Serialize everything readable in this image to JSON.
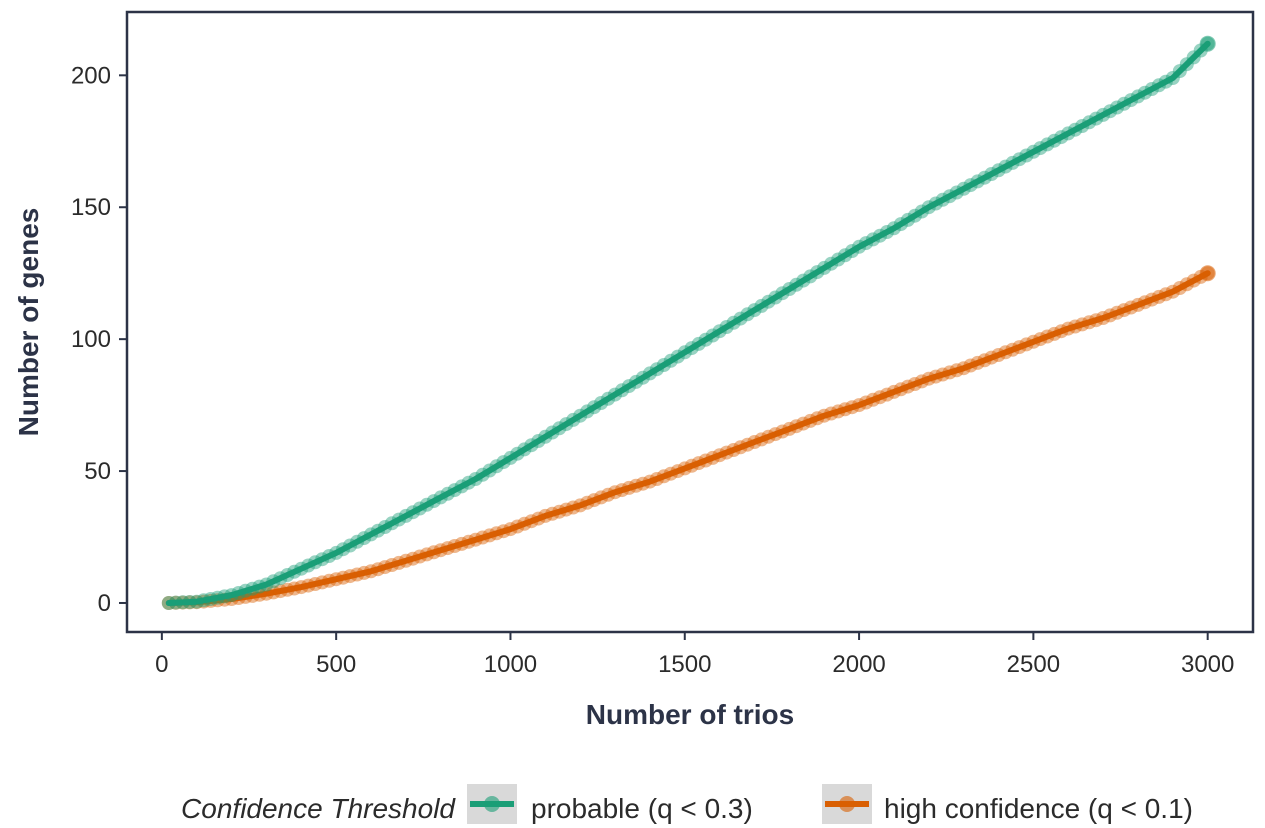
{
  "chart_data": {
    "type": "line",
    "title": "",
    "xlabel": "Number of trios",
    "ylabel": "Number of genes",
    "xlim": [
      -100,
      3130
    ],
    "ylim": [
      -11,
      224
    ],
    "x_ticks": [
      0,
      500,
      1000,
      1500,
      2000,
      2500,
      3000
    ],
    "y_ticks": [
      0,
      50,
      100,
      150,
      200
    ],
    "x_tick_labels": [
      "0",
      "500",
      "1000",
      "1500",
      "2000",
      "2500",
      "3000"
    ],
    "y_tick_labels": [
      "0",
      "50",
      "100",
      "150",
      "200"
    ],
    "grid": false,
    "legend": {
      "position": "bottom",
      "title": "Confidence Threshold",
      "entries": [
        "probable (q < 0.3)",
        "high confidence (q < 0.1)"
      ]
    },
    "x": [
      20,
      100,
      200,
      300,
      400,
      500,
      600,
      700,
      800,
      900,
      1000,
      1100,
      1200,
      1300,
      1400,
      1500,
      1600,
      1700,
      1800,
      1900,
      2000,
      2100,
      2200,
      2300,
      2400,
      2500,
      2600,
      2700,
      2800,
      2900,
      3000
    ],
    "series": [
      {
        "name": "probable (q < 0.3)",
        "color": "#1b9e77",
        "values": [
          0,
          0.5,
          3,
          7,
          13,
          19,
          26,
          33,
          40,
          47,
          55,
          63,
          71,
          79,
          87,
          95,
          103,
          111,
          119,
          127,
          135,
          142,
          150,
          157,
          164,
          171,
          178,
          185,
          192,
          199,
          212
        ]
      },
      {
        "name": "high confidence (q < 0.1)",
        "color": "#d95f02",
        "values": [
          0,
          0.3,
          1.5,
          3.5,
          6,
          9,
          12,
          16,
          20,
          24,
          28,
          33,
          37,
          42,
          46,
          51,
          56,
          61,
          66,
          71,
          75,
          80,
          85,
          89,
          94,
          99,
          104,
          108,
          113,
          118,
          125
        ]
      }
    ]
  }
}
